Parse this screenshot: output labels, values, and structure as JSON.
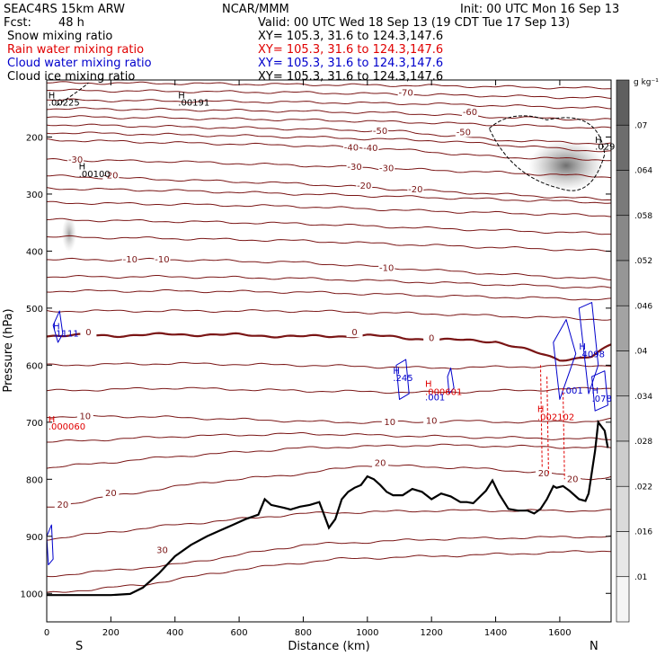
{
  "header": {
    "model": "SEAC4RS 15km ARW",
    "org": "NCAR/MMM",
    "init": "Init: 00 UTC Mon 16 Sep 13",
    "fcst_label": "Fcst:",
    "fcst_value": "48 h",
    "valid": "Valid: 00 UTC Wed 18 Sep 13 (19 CDT Tue 17 Sep 13)",
    "fields": [
      {
        "name": "Snow mixing ratio",
        "color": "#000000",
        "xy": "XY= 105.3, 31.6 to 124.3,147.6"
      },
      {
        "name": "Rain water mixing ratio",
        "color": "#e00000",
        "xy": "XY= 105.3, 31.6 to 124.3,147.6"
      },
      {
        "name": "Cloud water mixing ratio",
        "color": "#0000cc",
        "xy": "XY= 105.3, 31.6 to 124.3,147.6"
      },
      {
        "name": "Cloud ice mixing ratio",
        "color": "#000000",
        "xy": "XY= 105.3, 31.6 to 124.3,147.6"
      }
    ]
  },
  "chart_data": {
    "type": "cross-section",
    "xlabel": "Distance (km)",
    "ylabel": "Pressure (hPa)",
    "xlim": [
      0,
      1760
    ],
    "ylim": [
      1050,
      100
    ],
    "x_ticks": [
      0,
      200,
      400,
      600,
      800,
      1000,
      1200,
      1400,
      1600
    ],
    "y_ticks": [
      200,
      300,
      400,
      500,
      600,
      700,
      800,
      900,
      1000
    ],
    "x_end_labels": {
      "left": "S",
      "right": "N"
    },
    "colorbar": {
      "unit": "g kg⁻¹",
      "levels": [
        ".01",
        ".016",
        ".022",
        ".028",
        ".034",
        ".04",
        ".046",
        ".052",
        ".058",
        ".064",
        ".07"
      ]
    },
    "temperature_contours": [
      {
        "label": "30",
        "labels": [
          {
            "x": 360,
            "p": 925,
            "t": "30"
          }
        ]
      },
      {
        "label": "20",
        "labels": [
          {
            "x": 50,
            "p": 845,
            "t": "20"
          },
          {
            "x": 200,
            "p": 825,
            "t": "20"
          },
          {
            "x": 1040,
            "p": 772,
            "t": "20"
          },
          {
            "x": 1550,
            "p": 790,
            "t": "20"
          },
          {
            "x": 1640,
            "p": 800,
            "t": "20"
          }
        ]
      },
      {
        "label": "10",
        "labels": [
          {
            "x": 120,
            "p": 690,
            "t": "10"
          },
          {
            "x": 1070,
            "p": 700,
            "t": "10"
          },
          {
            "x": 1200,
            "p": 698,
            "t": "10"
          }
        ]
      },
      {
        "label": "0",
        "labels": [
          {
            "x": 130,
            "p": 543,
            "t": "0"
          },
          {
            "x": 960,
            "p": 543,
            "t": "0"
          },
          {
            "x": 1200,
            "p": 553,
            "t": "0"
          }
        ]
      },
      {
        "label": "-10",
        "labels": [
          {
            "x": 260,
            "p": 415,
            "t": "-10"
          },
          {
            "x": 360,
            "p": 415,
            "t": "-10"
          },
          {
            "x": 1060,
            "p": 430,
            "t": "-10"
          }
        ]
      },
      {
        "label": "-20",
        "labels": [
          {
            "x": 200,
            "p": 268,
            "t": "-20"
          },
          {
            "x": 990,
            "p": 286,
            "t": "-20"
          },
          {
            "x": 1150,
            "p": 292,
            "t": "-20"
          }
        ]
      },
      {
        "label": "-30",
        "labels": [
          {
            "x": 90,
            "p": 240,
            "t": "-30"
          },
          {
            "x": 960,
            "p": 253,
            "t": "-30"
          },
          {
            "x": 1060,
            "p": 255,
            "t": "-30"
          }
        ]
      },
      {
        "label": "-40",
        "labels": [
          {
            "x": 950,
            "p": 219,
            "t": "-40"
          },
          {
            "x": 1010,
            "p": 220,
            "t": "-40"
          }
        ]
      },
      {
        "label": "-50",
        "labels": [
          {
            "x": 1040,
            "p": 190,
            "t": "-50"
          },
          {
            "x": 1300,
            "p": 192,
            "t": "-50"
          }
        ]
      },
      {
        "label": "-60",
        "labels": [
          {
            "x": 1320,
            "p": 157,
            "t": "-60"
          }
        ]
      },
      {
        "label": "-70",
        "labels": [
          {
            "x": 1120,
            "p": 123,
            "t": "-70"
          }
        ]
      }
    ],
    "freezing_level_hpa": 550,
    "terrain_hpa": [
      [
        0,
        1003
      ],
      [
        200,
        1003
      ],
      [
        260,
        1001
      ],
      [
        300,
        990
      ],
      [
        350,
        965
      ],
      [
        400,
        935
      ],
      [
        450,
        915
      ],
      [
        500,
        900
      ],
      [
        540,
        890
      ],
      [
        580,
        880
      ],
      [
        620,
        870
      ],
      [
        660,
        862
      ],
      [
        680,
        835
      ],
      [
        700,
        845
      ],
      [
        740,
        850
      ],
      [
        760,
        853
      ],
      [
        790,
        848
      ],
      [
        820,
        845
      ],
      [
        850,
        840
      ],
      [
        860,
        855
      ],
      [
        880,
        885
      ],
      [
        900,
        870
      ],
      [
        920,
        835
      ],
      [
        940,
        822
      ],
      [
        960,
        815
      ],
      [
        980,
        810
      ],
      [
        1000,
        795
      ],
      [
        1020,
        800
      ],
      [
        1040,
        810
      ],
      [
        1060,
        822
      ],
      [
        1080,
        828
      ],
      [
        1110,
        828
      ],
      [
        1140,
        817
      ],
      [
        1170,
        822
      ],
      [
        1200,
        835
      ],
      [
        1230,
        825
      ],
      [
        1260,
        830
      ],
      [
        1290,
        840
      ],
      [
        1310,
        840
      ],
      [
        1330,
        842
      ],
      [
        1370,
        820
      ],
      [
        1390,
        802
      ],
      [
        1410,
        825
      ],
      [
        1440,
        852
      ],
      [
        1470,
        855
      ],
      [
        1500,
        855
      ],
      [
        1520,
        860
      ],
      [
        1540,
        852
      ],
      [
        1560,
        835
      ],
      [
        1580,
        812
      ],
      [
        1590,
        815
      ],
      [
        1610,
        812
      ],
      [
        1630,
        820
      ],
      [
        1660,
        835
      ],
      [
        1680,
        838
      ],
      [
        1690,
        825
      ],
      [
        1710,
        750
      ],
      [
        1720,
        700
      ],
      [
        1740,
        715
      ],
      [
        1750,
        745
      ]
    ],
    "snow_shading": [
      {
        "x": 70,
        "p": 370,
        "intensity": 0.025
      },
      {
        "x": 1620,
        "p": 250,
        "intensity": 0.07
      }
    ],
    "labels": [
      {
        "t": "H",
        "x": 5,
        "p": 132,
        "color": "#000000"
      },
      {
        "t": ".00225",
        "x": 5,
        "p": 145,
        "color": "#000000"
      },
      {
        "t": "H",
        "x": 410,
        "p": 132,
        "color": "#000000"
      },
      {
        "t": ".00191",
        "x": 410,
        "p": 145,
        "color": "#000000"
      },
      {
        "t": "H",
        "x": 100,
        "p": 257,
        "color": "#000000"
      },
      {
        "t": ".00100",
        "x": 100,
        "p": 270,
        "color": "#000000"
      },
      {
        "t": "H",
        "x": 1710,
        "p": 210,
        "color": "#000000"
      },
      {
        "t": ".029",
        "x": 1710,
        "p": 222,
        "color": "#000000"
      },
      {
        "t": "H",
        "x": 20,
        "p": 537,
        "color": "#0000cc"
      },
      {
        "t": ".1111",
        "x": 20,
        "p": 550,
        "color": "#0000cc"
      },
      {
        "t": "H",
        "x": 1080,
        "p": 615,
        "color": "#0000cc"
      },
      {
        "t": ".245",
        "x": 1080,
        "p": 628,
        "color": "#0000cc"
      },
      {
        "t": "H",
        "x": 1180,
        "p": 638,
        "color": "#e00000"
      },
      {
        "t": ".000601",
        "x": 1180,
        "p": 652,
        "color": "#e00000"
      },
      {
        "t": ".001",
        "x": 1180,
        "p": 662,
        "color": "#0000cc"
      },
      {
        "t": "H",
        "x": 1660,
        "p": 573,
        "color": "#0000cc"
      },
      {
        "t": ".4098",
        "x": 1660,
        "p": 586,
        "color": "#0000cc"
      },
      {
        "t": ".001",
        "x": 1610,
        "p": 650,
        "color": "#0000cc"
      },
      {
        "t": "H",
        "x": 1530,
        "p": 682,
        "color": "#e00000"
      },
      {
        "t": ".002102",
        "x": 1530,
        "p": 696,
        "color": "#e00000"
      },
      {
        "t": "H",
        "x": 1700,
        "p": 650,
        "color": "#0000cc"
      },
      {
        "t": ".078",
        "x": 1700,
        "p": 664,
        "color": "#0000cc"
      },
      {
        "t": "H",
        "x": 5,
        "p": 700,
        "color": "#e00000"
      },
      {
        "t": ".000060",
        "x": 5,
        "p": 713,
        "color": "#e00000"
      }
    ]
  }
}
